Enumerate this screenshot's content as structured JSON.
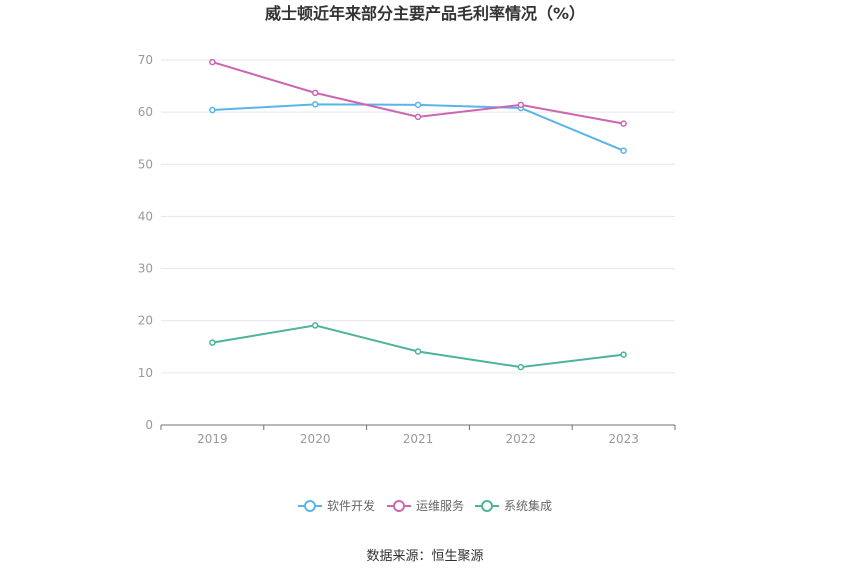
{
  "chart_data": {
    "type": "line",
    "title": "威士顿近年来部分主要产品毛利率情况（%）",
    "categories": [
      "2019",
      "2020",
      "2021",
      "2022",
      "2023"
    ],
    "ylim": [
      0,
      70
    ],
    "yticks": [
      0,
      10,
      20,
      30,
      40,
      50,
      60,
      70
    ],
    "grid": true,
    "legend_position": "bottom",
    "series": [
      {
        "name": "软件开发",
        "color": "#5ab4e8",
        "values": [
          60.4,
          61.5,
          61.4,
          60.8,
          52.6
        ]
      },
      {
        "name": "运维服务",
        "color": "#cc66b0",
        "values": [
          69.6,
          63.7,
          59.1,
          61.4,
          57.8
        ]
      },
      {
        "name": "系统集成",
        "color": "#4db39a",
        "values": [
          15.8,
          19.1,
          14.1,
          11.1,
          13.5
        ]
      }
    ]
  },
  "source_text": "数据来源：恒生聚源"
}
